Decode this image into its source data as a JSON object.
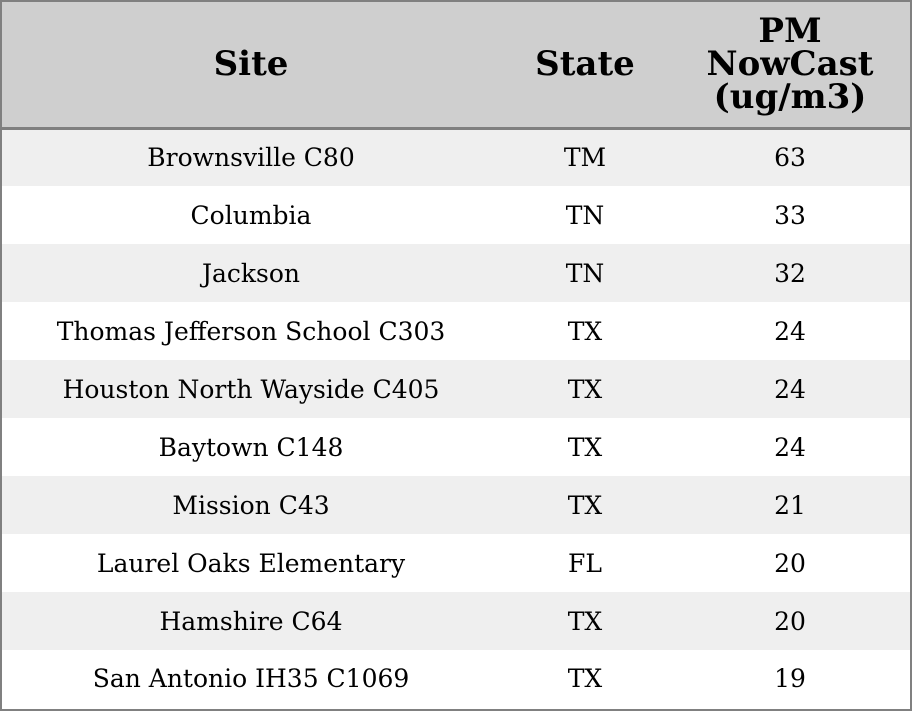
{
  "table": {
    "headers": {
      "site": "Site",
      "state": "State",
      "pm_line1": "PM",
      "pm_line2": "NowCast",
      "pm_line3": "(ug/m3)"
    },
    "rows": [
      {
        "site": "Brownsville C80",
        "state": "TM",
        "pm": "63"
      },
      {
        "site": "Columbia",
        "state": "TN",
        "pm": "33"
      },
      {
        "site": "Jackson",
        "state": "TN",
        "pm": "32"
      },
      {
        "site": "Thomas Jefferson School C303",
        "state": "TX",
        "pm": "24"
      },
      {
        "site": "Houston North Wayside C405",
        "state": "TX",
        "pm": "24"
      },
      {
        "site": "Baytown C148",
        "state": "TX",
        "pm": "24"
      },
      {
        "site": "Mission C43",
        "state": "TX",
        "pm": "21"
      },
      {
        "site": "Laurel Oaks Elementary",
        "state": "FL",
        "pm": "20"
      },
      {
        "site": "Hamshire C64",
        "state": "TX",
        "pm": "20"
      },
      {
        "site": "San Antonio IH35 C1069",
        "state": "TX",
        "pm": "19"
      }
    ]
  },
  "colors": {
    "header_bg": "#cfcfcf",
    "row_alt_bg": "#efefef",
    "row_bg": "#ffffff",
    "border": "#808080"
  }
}
